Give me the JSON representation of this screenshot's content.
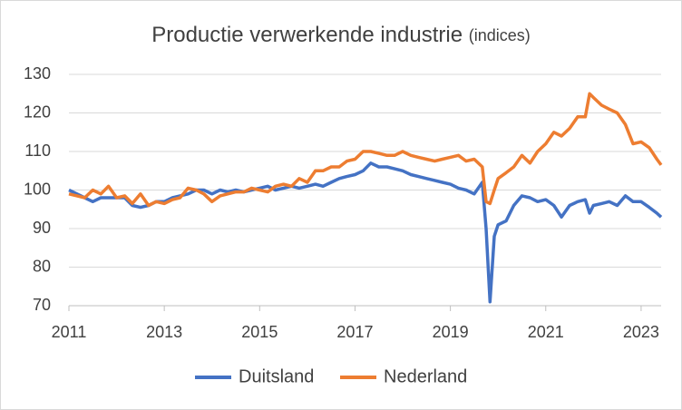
{
  "chart_data": {
    "type": "line",
    "title": "Productie verwerkende industrie",
    "subtitle": "(indices)",
    "x": [
      2011,
      2011.17,
      2011.33,
      2011.5,
      2011.67,
      2011.83,
      2012,
      2012.17,
      2012.33,
      2012.5,
      2012.67,
      2012.83,
      2013,
      2013.17,
      2013.33,
      2013.5,
      2013.67,
      2013.83,
      2014,
      2014.17,
      2014.33,
      2014.5,
      2014.67,
      2014.83,
      2015,
      2015.17,
      2015.33,
      2015.5,
      2015.67,
      2015.83,
      2016,
      2016.17,
      2016.33,
      2016.5,
      2016.67,
      2016.83,
      2017,
      2017.17,
      2017.33,
      2017.5,
      2017.67,
      2017.83,
      2018,
      2018.17,
      2018.33,
      2018.5,
      2018.67,
      2018.83,
      2019,
      2019.17,
      2019.33,
      2019.5,
      2019.67,
      2019.75,
      2019.83,
      2019.92,
      2020,
      2020.17,
      2020.33,
      2020.5,
      2020.67,
      2020.83,
      2021,
      2021.17,
      2021.33,
      2021.5,
      2021.67,
      2021.83,
      2021.92,
      2022,
      2022.17,
      2022.33,
      2022.5,
      2022.67,
      2022.83,
      2023,
      2023.17,
      2023.33,
      2023.42
    ],
    "series": [
      {
        "name": "Duitsland",
        "color": "#4472c4",
        "values": [
          100,
          99,
          98,
          97,
          98,
          98,
          98,
          98,
          96,
          95.5,
          96,
          97,
          97,
          98,
          98.5,
          99,
          100,
          100,
          99,
          100,
          99.5,
          100,
          99.5,
          100,
          100.5,
          101,
          100,
          100.5,
          101,
          100.5,
          101,
          101.5,
          101,
          102,
          103,
          103.5,
          104,
          105,
          107,
          106,
          106,
          105.5,
          105,
          104,
          103.5,
          103,
          102.5,
          102,
          101.5,
          100.5,
          100,
          99,
          102,
          90,
          71,
          88,
          91,
          92,
          96,
          98.5,
          98,
          97,
          97.5,
          96,
          93,
          96,
          97,
          97.5,
          94,
          96,
          96.5,
          97,
          96,
          98.5,
          97,
          97,
          95.5,
          94,
          93
        ]
      },
      {
        "name": "Nederland",
        "color": "#ed7d31",
        "values": [
          99,
          98.5,
          98,
          100,
          99,
          101,
          98,
          98.5,
          96.5,
          99,
          96,
          97,
          96.5,
          97.5,
          98,
          100.5,
          100,
          99,
          97,
          98.5,
          99,
          99.5,
          99.5,
          100.5,
          100,
          99.5,
          101,
          101.5,
          101,
          103,
          102,
          105,
          105,
          106,
          106,
          107.5,
          108,
          110,
          110,
          109.5,
          109,
          109,
          110,
          109,
          108.5,
          108,
          107.5,
          108,
          108.5,
          109,
          107.5,
          108,
          106,
          97,
          96.5,
          100,
          103,
          104.5,
          106,
          109,
          107,
          110,
          112,
          115,
          114,
          116,
          119,
          119,
          125,
          124,
          122,
          121,
          120,
          117,
          112,
          112.5,
          111,
          108,
          106.5
        ]
      }
    ],
    "xlim": [
      2011,
      2023.42
    ],
    "xticks": [
      2011,
      2013,
      2015,
      2017,
      2019,
      2021,
      2023
    ],
    "ylim": [
      70,
      130
    ],
    "yticks": [
      70,
      80,
      90,
      100,
      110,
      120,
      130
    ],
    "grid": true,
    "legend": "bottom"
  }
}
